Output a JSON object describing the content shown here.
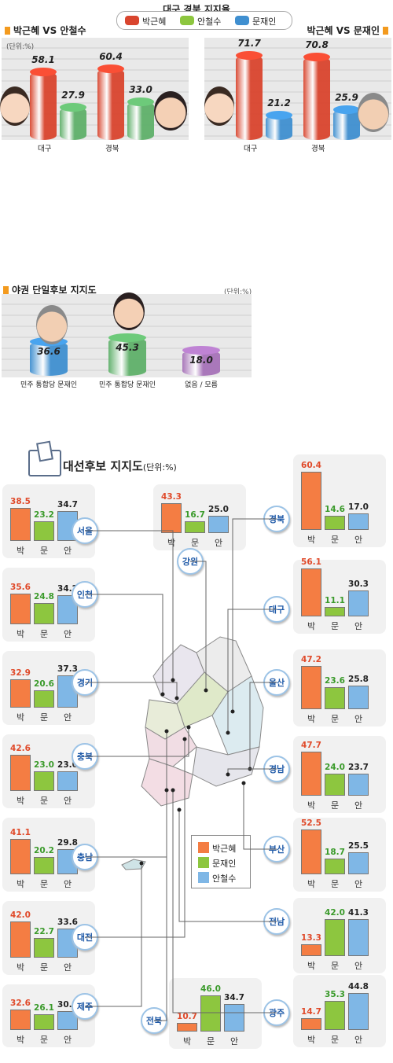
{
  "top": {
    "title": "대구 경북 지지율",
    "legend": [
      "박근혜",
      "안철수",
      "문재인"
    ],
    "left_title": "박근혜 VS 안철수",
    "right_title": "박근혜 VS 문재인",
    "unit": "(단위:%)"
  },
  "mid": {
    "title": "야권 단일후보 지지도",
    "unit": "(단위:%)"
  },
  "map": {
    "title": "대선후보 지지도",
    "unit": "(단위:%)",
    "legend": [
      "박근혜",
      "문재인",
      "안철수"
    ],
    "axis_labels": [
      "박",
      "문",
      "안"
    ]
  },
  "colors": {
    "park": "#f47d43",
    "moon": "#8dc63f",
    "ahn": "#7fb7e6",
    "park_text": "#e04a2a",
    "moon_text": "#3a9a2a",
    "ahn_text": "#222222",
    "cyl_red": "#d9452e",
    "cyl_green": "#5fb06a",
    "cyl_blue": "#3f8fd0",
    "cyl_purple": "#a672b8"
  },
  "chart_data": [
    {
      "type": "bar",
      "title": "박근혜 VS 안철수",
      "categories": [
        "대구",
        "경북"
      ],
      "series": [
        {
          "name": "박근혜",
          "values": [
            58.1,
            60.4
          ]
        },
        {
          "name": "안철수",
          "values": [
            27.9,
            33.0
          ]
        }
      ]
    },
    {
      "type": "bar",
      "title": "박근혜 VS 문재인",
      "categories": [
        "대구",
        "경북"
      ],
      "series": [
        {
          "name": "박근혜",
          "values": [
            71.7,
            70.8
          ]
        },
        {
          "name": "문재인",
          "values": [
            21.2,
            25.9
          ]
        }
      ]
    },
    {
      "type": "bar",
      "title": "야권 단일후보 지지도",
      "categories": [
        "민주 통합당 문재인",
        "민주 통합당 문재인",
        "없음 / 모름"
      ],
      "values": [
        36.6,
        45.3,
        18.0
      ]
    },
    {
      "type": "bar",
      "title": "대선후보 지지도",
      "series_names": [
        "박근혜",
        "문재인",
        "안철수"
      ],
      "regions": [
        {
          "name": "서울",
          "values": [
            38.5,
            23.2,
            34.7
          ]
        },
        {
          "name": "인천",
          "values": [
            35.6,
            24.8,
            34.2
          ]
        },
        {
          "name": "경기",
          "values": [
            32.9,
            20.6,
            37.3
          ]
        },
        {
          "name": "충북",
          "values": [
            42.6,
            23.0,
            23.0
          ]
        },
        {
          "name": "충남",
          "values": [
            41.1,
            20.2,
            29.8
          ]
        },
        {
          "name": "대전",
          "values": [
            42.0,
            22.7,
            33.6
          ]
        },
        {
          "name": "제주",
          "values": [
            32.6,
            26.1,
            30.4
          ]
        },
        {
          "name": "강원",
          "values": [
            43.3,
            16.7,
            25.0
          ]
        },
        {
          "name": "전북",
          "values": [
            10.7,
            46.0,
            34.7
          ]
        },
        {
          "name": "경북",
          "values": [
            60.4,
            14.6,
            17.0
          ]
        },
        {
          "name": "대구",
          "values": [
            56.1,
            11.1,
            30.3
          ]
        },
        {
          "name": "울산",
          "values": [
            47.2,
            23.6,
            25.8
          ]
        },
        {
          "name": "경남",
          "values": [
            47.7,
            24.0,
            23.7
          ]
        },
        {
          "name": "부산",
          "values": [
            52.5,
            18.7,
            25.5
          ]
        },
        {
          "name": "전남",
          "values": [
            13.3,
            42.0,
            41.3
          ]
        },
        {
          "name": "광주",
          "values": [
            14.7,
            35.3,
            44.8
          ]
        }
      ]
    }
  ]
}
